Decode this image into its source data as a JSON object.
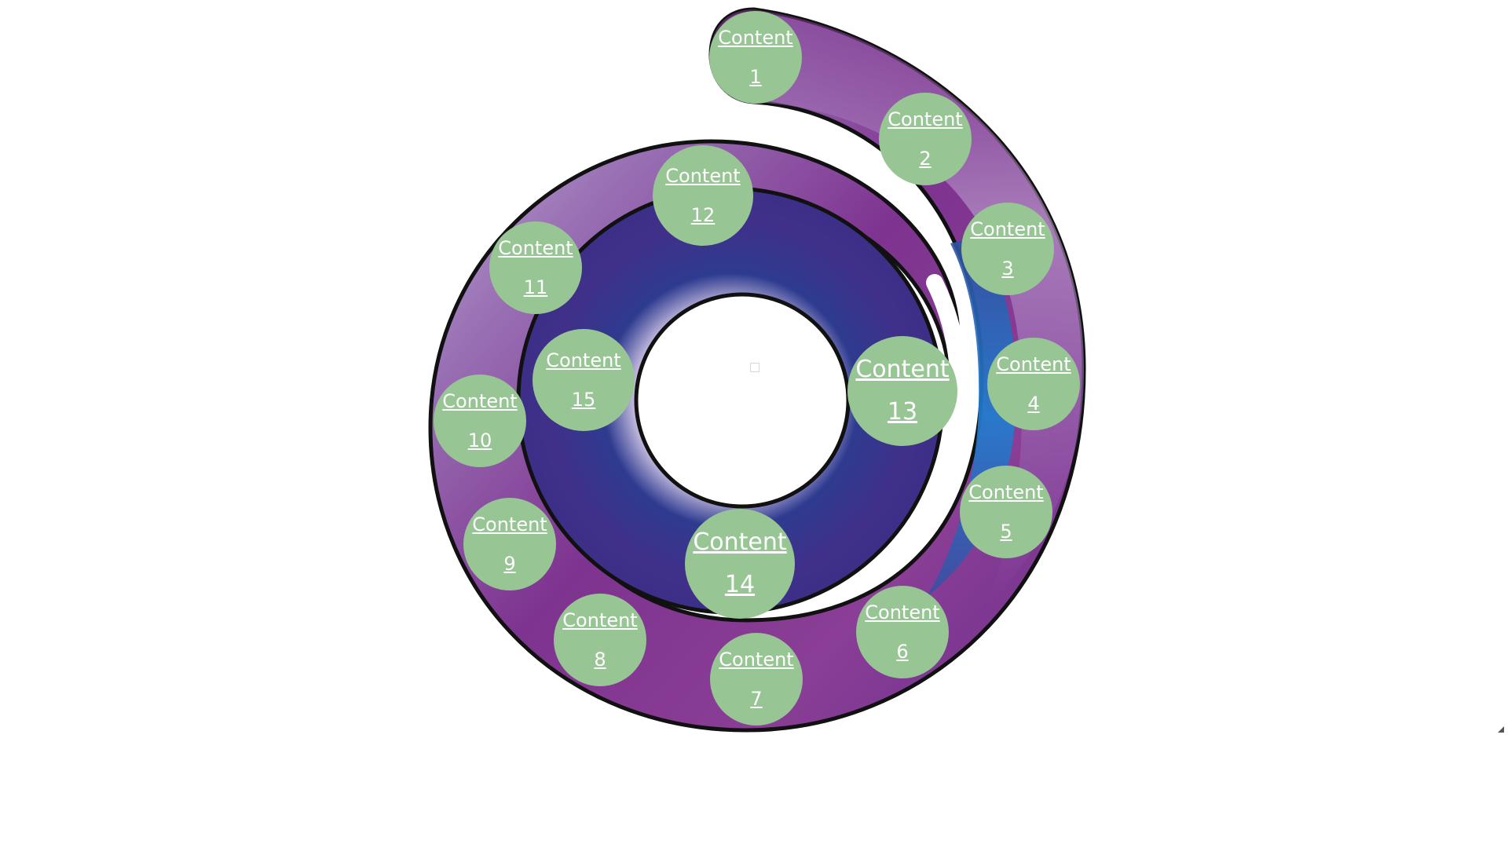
{
  "colors": {
    "bubble": "#97c594",
    "outline": "#111111",
    "purple": "#7e3390",
    "lavender": "#cdc3e0",
    "indigo": "#3f2f8a",
    "blue": "#1f7fd1"
  },
  "items": [
    {
      "id": "1",
      "label": "Content 1"
    },
    {
      "id": "2",
      "label": "Content 2"
    },
    {
      "id": "3",
      "label": "Content 3"
    },
    {
      "id": "4",
      "label": "Content 4"
    },
    {
      "id": "5",
      "label": "Content 5"
    },
    {
      "id": "6",
      "label": "Content 6"
    },
    {
      "id": "7",
      "label": "Content 7"
    },
    {
      "id": "8",
      "label": "Content 8"
    },
    {
      "id": "9",
      "label": "Content 9"
    },
    {
      "id": "10",
      "label": "Content 10"
    },
    {
      "id": "11",
      "label": "Content 11"
    },
    {
      "id": "12",
      "label": "Content 12"
    },
    {
      "id": "13",
      "label": "Content 13"
    },
    {
      "id": "14",
      "label": "Content 14"
    },
    {
      "id": "15",
      "label": "Content 15"
    }
  ]
}
